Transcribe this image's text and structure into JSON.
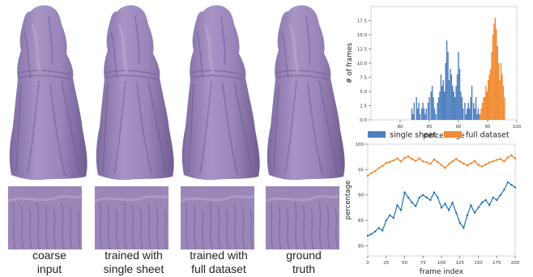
{
  "figure": {
    "captions": [
      {
        "line1": "coarse",
        "line2": "input"
      },
      {
        "line1": "trained with",
        "line2": "single sheet"
      },
      {
        "line1": "trained with",
        "line2": "full dataset"
      },
      {
        "line1": "ground",
        "line2": "truth"
      }
    ],
    "colors": {
      "cloth": "#9b86b9",
      "cloth_dark": "#6f5c91",
      "cloth_light": "#b9a8d2",
      "blue": "#4f7fc0",
      "orange": "#f08a32",
      "line_blue": "#1f6fb2",
      "line_orange": "#f07d1a"
    }
  },
  "chart_data": [
    {
      "type": "bar",
      "title": "",
      "xlabel": "percentage",
      "ylabel": "# of frames",
      "xlim": [
        75,
        100
      ],
      "ylim": [
        0,
        20
      ],
      "xticks": [
        "80",
        "85",
        "90",
        "95",
        "100"
      ],
      "yticks": [
        "0.0",
        "2.5",
        "5.0",
        "7.5",
        "10.0",
        "12.5",
        "15.0",
        "17.5"
      ],
      "legend": {
        "placement": "bottom",
        "entries": [
          "single sheet",
          "full dataset"
        ]
      },
      "series": [
        {
          "name": "single sheet",
          "x": [
            81.9,
            82.1,
            82.3,
            82.7,
            82.9,
            83.1,
            83.3,
            83.6,
            83.8,
            84.0,
            84.2,
            84.4,
            84.7,
            84.9,
            85.2,
            85.4,
            85.6,
            85.8,
            86.0,
            86.3,
            86.5,
            86.7,
            86.9,
            87.1,
            87.3,
            87.5,
            87.7,
            87.9,
            88.1,
            88.3,
            88.5,
            88.7,
            88.9,
            89.1,
            89.3,
            89.5,
            89.7,
            89.9,
            90.1,
            90.3,
            90.5,
            90.7,
            91.0,
            91.2,
            91.4,
            91.6,
            91.8,
            92.0,
            92.2,
            92.5,
            92.7,
            92.9,
            93.1,
            93.3,
            93.5
          ],
          "values": [
            2,
            1,
            3,
            4,
            2,
            3,
            1,
            2,
            3,
            2,
            1,
            2,
            3,
            4,
            5,
            6,
            4,
            2,
            1,
            3,
            4,
            5,
            8,
            6,
            7,
            5,
            10,
            14,
            12,
            7,
            9,
            8,
            6,
            5,
            4,
            6,
            8,
            12,
            9,
            5,
            4,
            2,
            3,
            1,
            2,
            3,
            2,
            4,
            6,
            3,
            2,
            4,
            1,
            2,
            1
          ]
        },
        {
          "name": "full dataset",
          "x": [
            93.6,
            93.8,
            94.0,
            94.2,
            94.4,
            94.6,
            94.8,
            95.0,
            95.2,
            95.4,
            95.6,
            95.8,
            96.0,
            96.2,
            96.4,
            96.6,
            96.8,
            97.0,
            97.2,
            97.4,
            97.6,
            97.8
          ],
          "values": [
            1,
            2,
            3,
            4,
            4,
            6,
            5,
            7,
            8,
            9,
            12,
            15,
            17,
            18,
            16,
            13,
            10,
            7,
            10,
            8,
            6,
            4
          ]
        }
      ]
    },
    {
      "type": "line",
      "title": "",
      "xlabel": "frame index",
      "ylabel": "percentage",
      "xlim": [
        0,
        200
      ],
      "ylim": [
        78,
        100
      ],
      "xticks": [
        "0",
        "25",
        "50",
        "75",
        "100",
        "125",
        "150",
        "175",
        "200"
      ],
      "yticks": [
        "80",
        "85",
        "90",
        "95",
        "100"
      ],
      "series": [
        {
          "name": "single sheet",
          "x": [
            0,
            5,
            10,
            15,
            20,
            25,
            30,
            35,
            40,
            45,
            50,
            55,
            60,
            65,
            70,
            75,
            80,
            85,
            90,
            95,
            100,
            105,
            110,
            115,
            120,
            125,
            130,
            135,
            140,
            145,
            150,
            155,
            160,
            165,
            170,
            175,
            180,
            185,
            190,
            195,
            200
          ],
          "values": [
            82,
            82.3,
            82.8,
            83.5,
            83,
            85,
            86,
            85.5,
            88,
            87,
            90.5,
            89.5,
            88.5,
            87.8,
            89.5,
            90,
            89.5,
            89,
            90.5,
            89.5,
            87.5,
            88.3,
            87,
            88.5,
            86.5,
            84.5,
            83.5,
            86,
            88,
            86.5,
            87.5,
            88.5,
            89,
            88,
            89.5,
            89,
            90,
            91,
            92.5,
            92,
            91.5
          ]
        },
        {
          "name": "full dataset",
          "x": [
            0,
            5,
            10,
            15,
            20,
            25,
            30,
            35,
            40,
            45,
            50,
            55,
            60,
            65,
            70,
            75,
            80,
            85,
            90,
            95,
            100,
            105,
            110,
            115,
            120,
            125,
            130,
            135,
            140,
            145,
            150,
            155,
            160,
            165,
            170,
            175,
            180,
            185,
            190,
            195,
            200
          ],
          "values": [
            93.8,
            94.3,
            94.7,
            95.3,
            95.7,
            96.3,
            96.5,
            96.8,
            97.2,
            96.6,
            97.3,
            97.6,
            97.1,
            96.7,
            97.2,
            96.6,
            96.4,
            96.1,
            97.0,
            96.5,
            95.9,
            95.3,
            96.1,
            96.6,
            97.1,
            96.6,
            96.2,
            95.8,
            96.2,
            96.7,
            95.9,
            95.6,
            96.0,
            96.4,
            96.6,
            96.9,
            97.1,
            96.6,
            97.4,
            97.8,
            97.2
          ]
        }
      ]
    }
  ]
}
